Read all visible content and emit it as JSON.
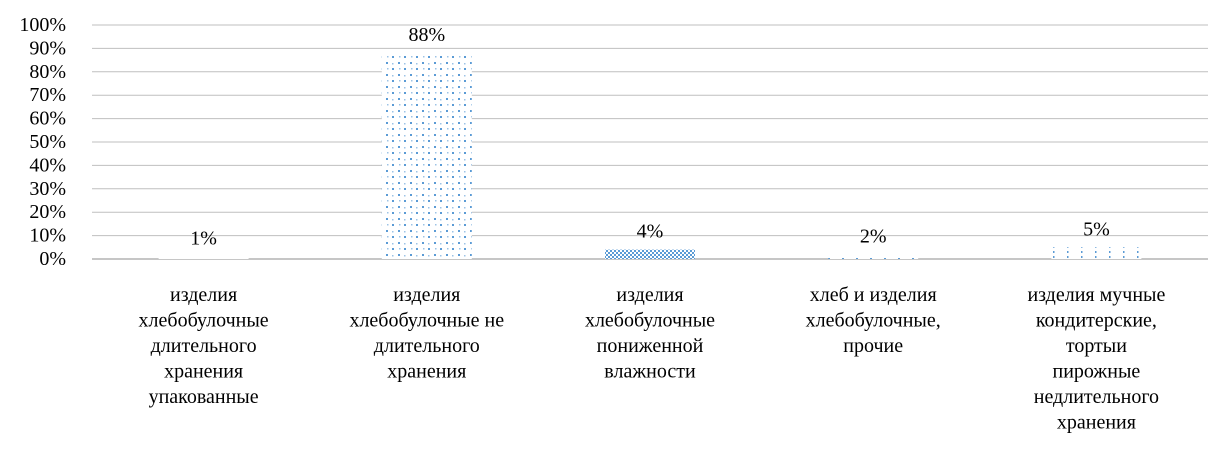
{
  "chart_data": {
    "type": "bar",
    "title": "",
    "xlabel": "",
    "ylabel": "",
    "ylim": [
      0,
      100
    ],
    "y_ticks": [
      "0%",
      "10%",
      "20%",
      "30%",
      "40%",
      "50%",
      "60%",
      "70%",
      "80%",
      "90%",
      "100%"
    ],
    "grid": true,
    "legend": "none",
    "categories": [
      "изделия хлебобулочные длительного хранения упакованные",
      "изделия хлебобулочные не длительного хранения",
      "изделия хлебобулочные пониженной влажности",
      "хлеб и изделия хлебобулочные, прочие",
      "изделия мучные кондитерские, тортыи пирожные недлительного хранения"
    ],
    "category_lines": [
      [
        "изделия",
        "хлебобулочные",
        "длительного",
        "хранения",
        "упакованные"
      ],
      [
        "изделия",
        "хлебобулочные не",
        "длительного",
        "хранения"
      ],
      [
        "изделия",
        "хлебобулочные",
        "пониженной",
        "влажности"
      ],
      [
        "хлеб и изделия",
        "хлебобулочные,",
        "прочие"
      ],
      [
        "изделия мучные",
        "кондитерские,",
        "тортыи",
        "пирожные",
        "недлительного",
        "хранения"
      ]
    ],
    "values": [
      1,
      88,
      4,
      2,
      5
    ],
    "data_labels": [
      "1%",
      "88%",
      "4%",
      "2%",
      "5%"
    ],
    "colors": {
      "bar": "#5b9bd5",
      "grid": "#bfbfbf",
      "axis": "#8c8c8c",
      "text": "#000000"
    }
  }
}
